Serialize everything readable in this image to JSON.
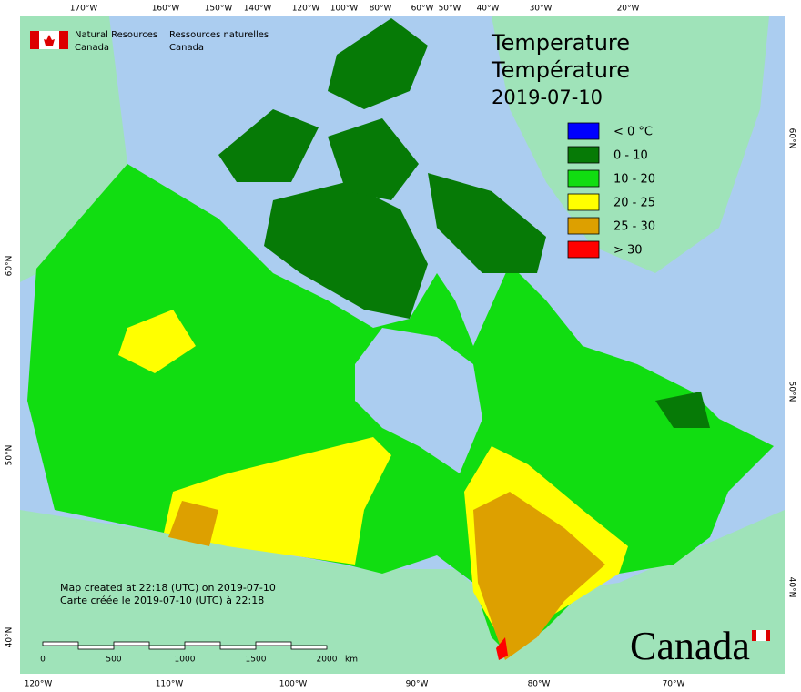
{
  "header": {
    "agency_en": [
      "Natural Resources",
      "Canada"
    ],
    "agency_fr": [
      "Ressources naturelles",
      "Canada"
    ]
  },
  "title": [
    "Temperature",
    "Température",
    "2019-07-10"
  ],
  "legend": {
    "items": [
      {
        "label": "< 0 °C",
        "color": "#0000ff"
      },
      {
        "label": "0 - 10",
        "color": "#067a06"
      },
      {
        "label": "10 - 20",
        "color": "#11dd11"
      },
      {
        "label": "20 - 25",
        "color": "#ffff00"
      },
      {
        "label": "25 - 30",
        "color": "#dda000"
      },
      {
        "label": "> 30",
        "color": "#ff0000"
      }
    ]
  },
  "graticule": {
    "top": [
      "170°W",
      "160°W",
      "150°W",
      "140°W",
      "120°W",
      "100°W",
      "80°W",
      "60°W",
      "50°W",
      "40°W",
      "30°W",
      "20°W"
    ],
    "bottom": [
      "120°W",
      "110°W",
      "100°W",
      "90°W",
      "80°W",
      "70°W"
    ],
    "left": [
      "60°N",
      "50°N",
      "40°N"
    ],
    "right": [
      "60°N",
      "50°N",
      "40°N"
    ]
  },
  "notes": [
    "Map created at 22:18 (UTC) on 2019-07-10",
    "Carte créée le 2019-07-10 (UTC) à 22:18"
  ],
  "scale_bar": {
    "labels": [
      "0",
      "500",
      "1000",
      "1500",
      "2000"
    ],
    "unit": "km"
  },
  "wordmark": "Canada"
}
